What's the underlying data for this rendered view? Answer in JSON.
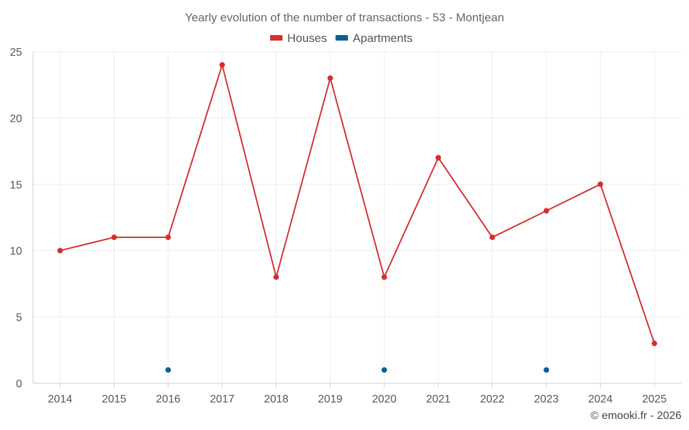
{
  "chart_data": {
    "type": "line",
    "title": "Yearly evolution of the number of transactions - 53 - Montjean",
    "categories": [
      "2014",
      "2015",
      "2016",
      "2017",
      "2018",
      "2019",
      "2020",
      "2021",
      "2022",
      "2023",
      "2024",
      "2025"
    ],
    "series": [
      {
        "name": "Houses",
        "color": "#d32f2f",
        "values": [
          10,
          11,
          11,
          24,
          8,
          23,
          8,
          17,
          11,
          13,
          15,
          3
        ]
      },
      {
        "name": "Apartments",
        "color": "#0b5f94",
        "values": [
          null,
          null,
          1,
          null,
          null,
          null,
          1,
          null,
          null,
          1,
          null,
          null
        ]
      }
    ],
    "xlabel": "",
    "ylabel": "",
    "ylim": [
      0,
      25
    ],
    "yticks": [
      "0",
      "5",
      "10",
      "15",
      "20",
      "25"
    ],
    "grid": true,
    "legend": "top-center"
  },
  "credit": "© emooki.fr - 2026"
}
